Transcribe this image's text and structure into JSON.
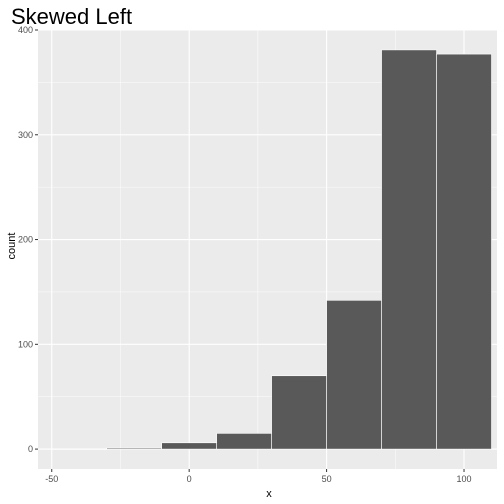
{
  "chart_data": {
    "type": "bar",
    "title": "Skewed Left",
    "xlabel": "x",
    "ylabel": "count",
    "xlim": [
      -55,
      112
    ],
    "ylim": [
      -19,
      400
    ],
    "x_ticks": [
      -50,
      0,
      50,
      100
    ],
    "y_ticks": [
      0,
      100,
      200,
      300,
      400
    ],
    "bins": [
      {
        "start": -50,
        "end": -30,
        "count": 0
      },
      {
        "start": -30,
        "end": -10,
        "count": 1
      },
      {
        "start": -10,
        "end": 10,
        "count": 6
      },
      {
        "start": 10,
        "end": 30,
        "count": 15
      },
      {
        "start": 30,
        "end": 50,
        "count": 70
      },
      {
        "start": 50,
        "end": 70,
        "count": 142
      },
      {
        "start": 70,
        "end": 90,
        "count": 381
      },
      {
        "start": 90,
        "end": 110,
        "count": 377
      }
    ],
    "grid": true,
    "legend": "none",
    "colors": {
      "panel": "#ebebeb",
      "grid_major": "#ffffff",
      "bar_fill": "#595959",
      "bar_outline": "#ffffff",
      "tick_text": "#4d4d4d",
      "tick_mark": "#333333"
    }
  }
}
